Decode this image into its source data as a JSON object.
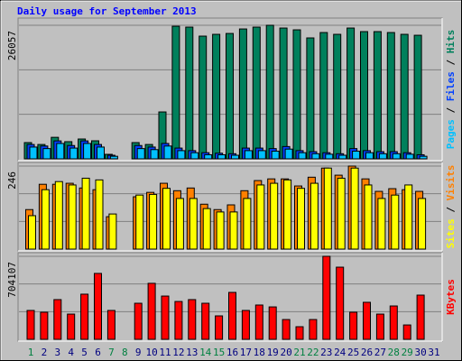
{
  "title": "Daily usage for September 2013",
  "chart_data": [
    {
      "type": "bar",
      "ylim": [
        0,
        26057
      ],
      "yticks": [
        26057
      ],
      "legend_separator": " / ",
      "series": [
        {
          "name": "Hits",
          "color": "#00805c",
          "values": [
            3170,
            2800,
            4200,
            3350,
            3870,
            3520,
            880,
            null,
            3170,
            2800,
            9150,
            25870,
            25700,
            23940,
            24290,
            24460,
            25340,
            25700,
            26057,
            25520,
            25170,
            23590,
            24640,
            24290,
            25520,
            24820,
            24820,
            24640,
            24290,
            24110,
            null
          ]
        },
        {
          "name": "Files",
          "color": "#0040ff",
          "values": [
            2800,
            2500,
            3500,
            2600,
            3500,
            2800,
            700,
            null,
            2600,
            2300,
            3000,
            2100,
            1600,
            1200,
            1100,
            1000,
            2100,
            2100,
            2000,
            2400,
            1600,
            1400,
            1200,
            1000,
            2000,
            1600,
            1400,
            1400,
            1200,
            800,
            null
          ]
        },
        {
          "name": "Pages",
          "color": "#00c0ff",
          "values": [
            2300,
            2000,
            3000,
            2100,
            3000,
            2300,
            500,
            null,
            2000,
            1800,
            2500,
            1600,
            1200,
            800,
            800,
            700,
            1600,
            1600,
            1500,
            1900,
            1200,
            1000,
            900,
            700,
            1500,
            1200,
            1000,
            1000,
            900,
            500,
            null
          ]
        }
      ]
    },
    {
      "type": "bar",
      "ylim": [
        0,
        246
      ],
      "yticks": [
        246
      ],
      "legend_separator": " / ",
      "series": [
        {
          "name": "Visits",
          "color": "#ff8000",
          "values": [
            117,
            192,
            192,
            195,
            181,
            176,
            96,
            null,
            155,
            168,
            195,
            173,
            181,
            133,
            117,
            131,
            173,
            203,
            208,
            208,
            187,
            213,
            240,
            219,
            246,
            208,
            171,
            179,
            176,
            171,
            null
          ]
        },
        {
          "name": "Sites",
          "color": "#ffff00",
          "values": [
            99,
            176,
            200,
            190,
            210,
            205,
            104,
            null,
            160,
            162,
            180,
            150,
            150,
            120,
            110,
            110,
            150,
            190,
            195,
            205,
            180,
            195,
            240,
            210,
            240,
            190,
            150,
            160,
            190,
            150,
            null
          ]
        }
      ]
    },
    {
      "type": "bar",
      "ylim": [
        0,
        704107
      ],
      "yticks": [
        704107
      ],
      "legend_separator": " / ",
      "categories": [
        "1",
        "2",
        "3",
        "4",
        "5",
        "6",
        "7",
        "8",
        "9",
        "10",
        "11",
        "12",
        "13",
        "14",
        "15",
        "16",
        "17",
        "18",
        "19",
        "20",
        "21",
        "22",
        "23",
        "24",
        "25",
        "26",
        "27",
        "28",
        "29",
        "30",
        "31"
      ],
      "category_colors": [
        "#008040",
        "#000080",
        "#000080",
        "#000080",
        "#000080",
        "#000080",
        "#008040",
        "#008040",
        "#000080",
        "#000080",
        "#000080",
        "#000080",
        "#000080",
        "#008040",
        "#008040",
        "#000080",
        "#000080",
        "#000080",
        "#000080",
        "#000080",
        "#008040",
        "#008040",
        "#000080",
        "#000080",
        "#000080",
        "#000080",
        "#000080",
        "#008040",
        "#008040",
        "#000080",
        "#000080"
      ],
      "series": [
        {
          "name": "KBytes",
          "color": "#ff0000",
          "values": [
            245000,
            230000,
            337000,
            214000,
            383000,
            559000,
            245000,
            null,
            306000,
            475000,
            367000,
            321000,
            337000,
            306000,
            199000,
            398000,
            245000,
            291000,
            275000,
            168000,
            107000,
            168000,
            704107,
            612000,
            230000,
            314000,
            214000,
            283000,
            122000,
            375000,
            null
          ]
        }
      ]
    }
  ]
}
